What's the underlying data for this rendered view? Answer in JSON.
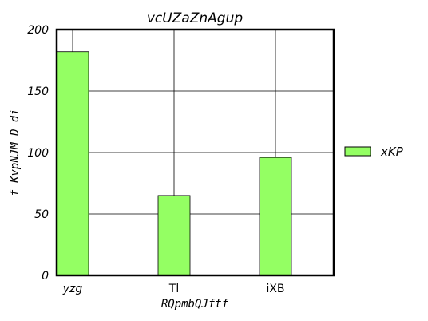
{
  "chart_data": {
    "type": "bar",
    "title": "vcUZaZnAgup",
    "xlabel": "RQpmbQJftf",
    "ylabel": "f KvpNJM D di",
    "categories": [
      "yzg",
      "Tl",
      "iXB"
    ],
    "series": [
      {
        "name": "xKP",
        "values": [
          182,
          65,
          96
        ],
        "color": "#94ff63"
      }
    ],
    "ylim": [
      0,
      200
    ],
    "yticks": [
      0,
      50,
      100,
      150,
      200
    ],
    "grid": true,
    "legend_position": "right"
  }
}
